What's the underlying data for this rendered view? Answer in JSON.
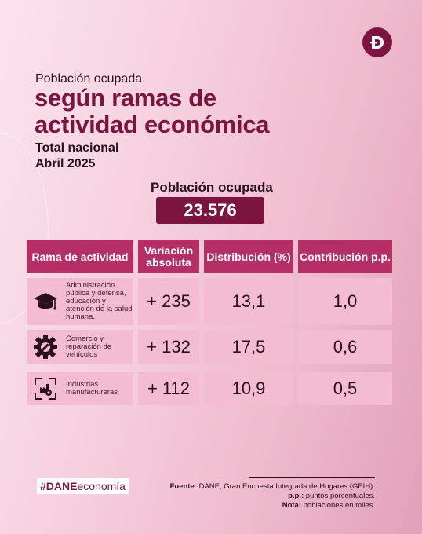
{
  "header": {
    "subtitle": "Población ocupada",
    "title_line1": "según ramas de",
    "title_line2": "actividad económica",
    "scope": "Total nacional",
    "period": "Abril 2025"
  },
  "total": {
    "label": "Población ocupada",
    "value": "23.576"
  },
  "table": {
    "columns": [
      "Rama de actividad",
      "Variación absoluta",
      "Distribución (%)",
      "Contribución p.p."
    ],
    "rows": [
      {
        "icon": "graduation-cap-icon",
        "label": "Administración pública y defensa, educación y atención de la salud humana.",
        "variation": "+ 235",
        "distribution": "13,1",
        "contribution": "1,0"
      },
      {
        "icon": "gear-wrench-icon",
        "label": "Comercio y reparación de vehículos",
        "variation": "+ 132",
        "distribution": "17,5",
        "contribution": "0,6"
      },
      {
        "icon": "industry-cycle-icon",
        "label": "Industrias manufactureras",
        "variation": "+ 112",
        "distribution": "10,9",
        "contribution": "0,5"
      }
    ]
  },
  "footer": {
    "hashtag_bold": "#DANE",
    "hashtag_rest": "economía",
    "source_label": "Fuente:",
    "source_text": " DANE, Gran Encuesta Integrada de Hogares (GEIH).",
    "pp_label": "p.p.:",
    "pp_text": " puntos porcentuales.",
    "note_label": "Nota:",
    "note_text": " poblaciones en miles."
  },
  "colors": {
    "brand": "#7b1540",
    "header_cell": "#b42f66",
    "body_cell": "#f3bcd0"
  }
}
